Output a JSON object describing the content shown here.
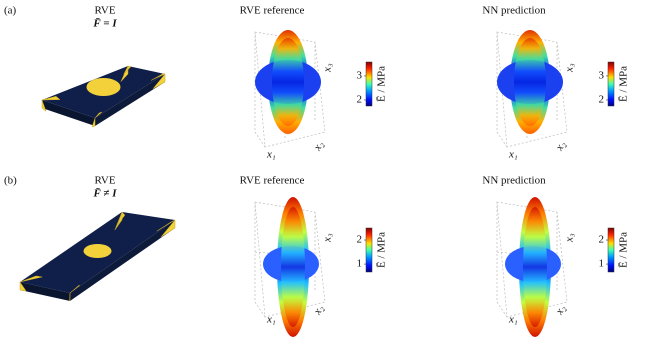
{
  "panels": [
    {
      "label": "(a)",
      "rve_title": "RVE",
      "rve_subtitle": "F̄ = I",
      "plots": [
        {
          "title": "RVE reference",
          "colorbar": {
            "label": "Ē / MPa",
            "lim": [
              1.75,
              3.58
            ],
            "ticks": [
              2,
              3
            ]
          },
          "axis_labels": [
            "x₁",
            "x₂",
            "x₃"
          ]
        },
        {
          "title": "NN prediction",
          "colorbar": {
            "label": "Ē / MPa",
            "lim": [
              1.75,
              3.58
            ],
            "ticks": [
              2,
              3
            ]
          },
          "axis_labels": [
            "x₁",
            "x₂",
            "x₃"
          ]
        }
      ]
    },
    {
      "label": "(b)",
      "rve_title": "RVE",
      "rve_subtitle": "F̄ ≠ I",
      "plots": [
        {
          "title": "RVE reference",
          "colorbar": {
            "label": "Ē / MPa",
            "lim": [
              0.67,
              2.5
            ],
            "ticks": [
              1,
              2
            ]
          },
          "axis_labels": [
            "x₁",
            "x₂",
            "x₃"
          ]
        },
        {
          "title": "NN prediction",
          "colorbar": {
            "label": "Ē / MPa",
            "lim": [
              0.67,
              2.5
            ],
            "ticks": [
              1,
              2
            ]
          },
          "axis_labels": [
            "x₁",
            "x₂",
            "x₃"
          ]
        }
      ]
    }
  ]
}
